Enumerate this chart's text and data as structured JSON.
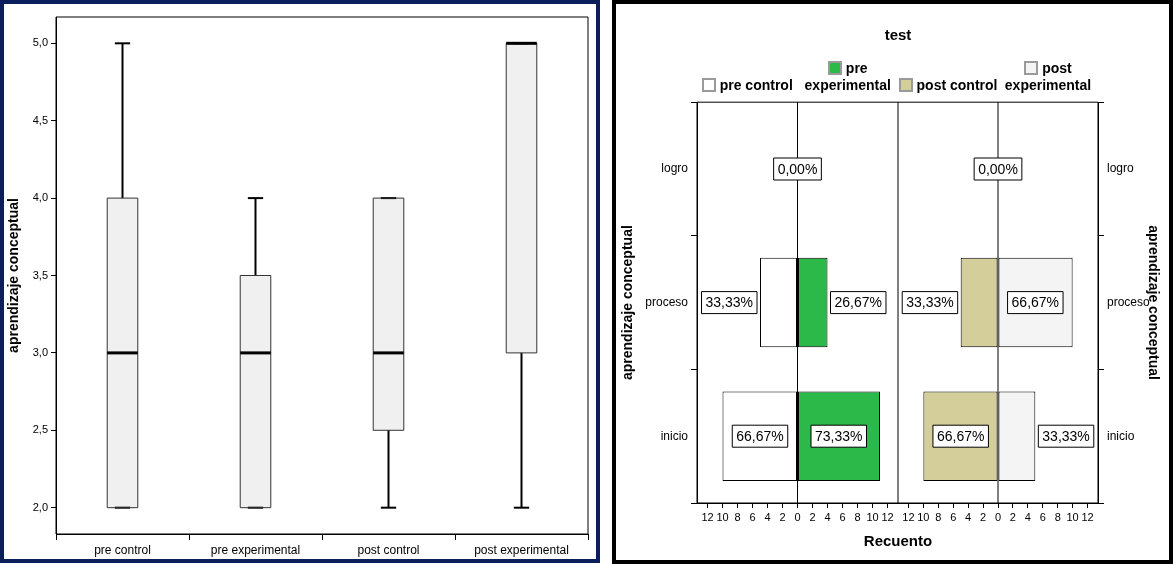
{
  "chart_data": [
    {
      "type": "box",
      "color": "#f0f0f0",
      "ylabel": "aprendizaje conceptual",
      "categories": [
        "pre control",
        "pre experimental",
        "post control",
        "post experimental"
      ],
      "boxes": [
        {
          "low": 2,
          "q1": 2,
          "median": 3,
          "q3": 4,
          "high": 5
        },
        {
          "low": 2,
          "q1": 2,
          "median": 3,
          "q3": 3.5,
          "high": 4
        },
        {
          "low": 2,
          "q1": 2.5,
          "median": 3,
          "q3": 4,
          "high": 4
        },
        {
          "low": 2,
          "q1": 3,
          "median": 5,
          "q3": 5,
          "high": 5
        }
      ],
      "ylim": [
        1.83,
        5.17
      ],
      "yticks": [
        {
          "value": 2,
          "label": "2,0"
        },
        {
          "value": 2.5,
          "label": "2,5"
        },
        {
          "value": 3,
          "label": "3,0"
        },
        {
          "value": 3.5,
          "label": "3,5"
        },
        {
          "value": 4,
          "label": "4,0"
        },
        {
          "value": 4.5,
          "label": "4,5"
        },
        {
          "value": 5,
          "label": "5,0"
        }
      ]
    },
    {
      "type": "bar",
      "orientation": "horizontal",
      "stacked": true,
      "legend": "top",
      "title": "test",
      "xlabel": "Recuento",
      "ylabel": "aprendizaje conceptual",
      "categories": [
        "logro",
        "proceso",
        "inicio"
      ],
      "series": [
        {
          "name": "pre control",
          "color": "#ffffff",
          "values": [
            0,
            -5,
            -10
          ]
        },
        {
          "name": "pre experimental",
          "color": "#2db84a",
          "values": [
            0,
            4,
            11
          ]
        }
      ],
      "annotations": [
        {
          "text": "0,00%",
          "x": 0,
          "y": "logro"
        },
        {
          "text": "33,33%",
          "x": -5,
          "y": "proceso"
        },
        {
          "text": "66,67%",
          "x": -10,
          "y": "inicio"
        },
        {
          "text": "26,67%",
          "x": 4,
          "y": "proceso"
        },
        {
          "text": "73,33%",
          "x": 11,
          "y": "inicio"
        }
      ],
      "xlim": [
        -13.4,
        13.4
      ],
      "xticks": [
        {
          "value": -12,
          "label": "12"
        },
        {
          "value": -10,
          "label": "10"
        },
        {
          "value": -8,
          "label": "8"
        },
        {
          "value": -6,
          "label": "6"
        },
        {
          "value": -4,
          "label": "4"
        },
        {
          "value": -2,
          "label": "2"
        },
        0,
        2,
        4,
        6,
        8,
        10,
        12
      ]
    },
    {
      "type": "bar",
      "orientation": "horizontal",
      "stacked": true,
      "legend": "top",
      "y2label": "aprendizaje conceptual",
      "categories": [
        "logro",
        "proceso",
        "inicio"
      ],
      "series": [
        {
          "name": "post control",
          "color": "#d4cf9a",
          "values": [
            0,
            -5,
            -10
          ]
        },
        {
          "name": "post experimental",
          "color": "#f4f4f4",
          "values": [
            0,
            10,
            5
          ]
        }
      ],
      "annotations": [
        {
          "text": "0,00%",
          "x": 0,
          "y": "logro"
        },
        {
          "text": "33,33%",
          "x": -5,
          "y": "proceso"
        },
        {
          "text": "66,67%",
          "x": -10,
          "y": "inicio"
        },
        {
          "text": "66,67%",
          "x": 10,
          "y": "proceso"
        },
        {
          "text": "33,33%",
          "x": 5,
          "y": "inicio"
        }
      ],
      "xlim": [
        -13.4,
        13.4
      ],
      "xticks": [
        {
          "value": -12,
          "label": "12"
        },
        {
          "value": -10,
          "label": "10"
        },
        {
          "value": -8,
          "label": "8"
        },
        {
          "value": -6,
          "label": "6"
        },
        {
          "value": -4,
          "label": "4"
        },
        {
          "value": -2,
          "label": "2"
        },
        0,
        2,
        4,
        6,
        8,
        10,
        12
      ]
    }
  ]
}
